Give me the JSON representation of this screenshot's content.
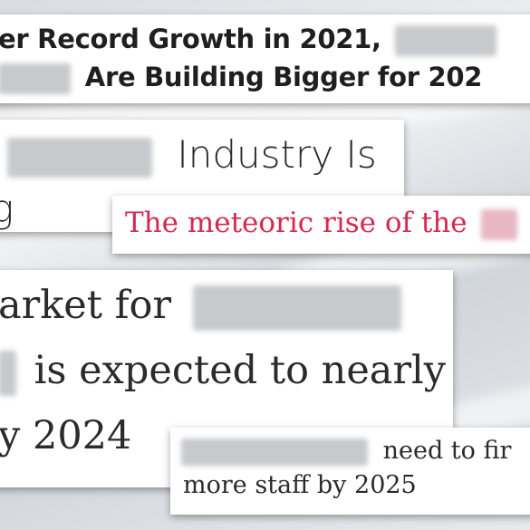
{
  "headlines": [
    {
      "line1": "er Record Growth in 2021,",
      "line2": "Are Building Bigger for 202"
    },
    {
      "line1": "Industry Is",
      "line2": "g"
    },
    {
      "line1": "The meteoric rise of the"
    },
    {
      "line1": "arket for",
      "line2": "is expected to nearly",
      "line3": "y 2024"
    },
    {
      "line1": "need to fir",
      "line2": "more staff by 2025"
    }
  ],
  "colors": {
    "accent_red": "#d8284f",
    "text_dark": "#1f1f1f"
  }
}
